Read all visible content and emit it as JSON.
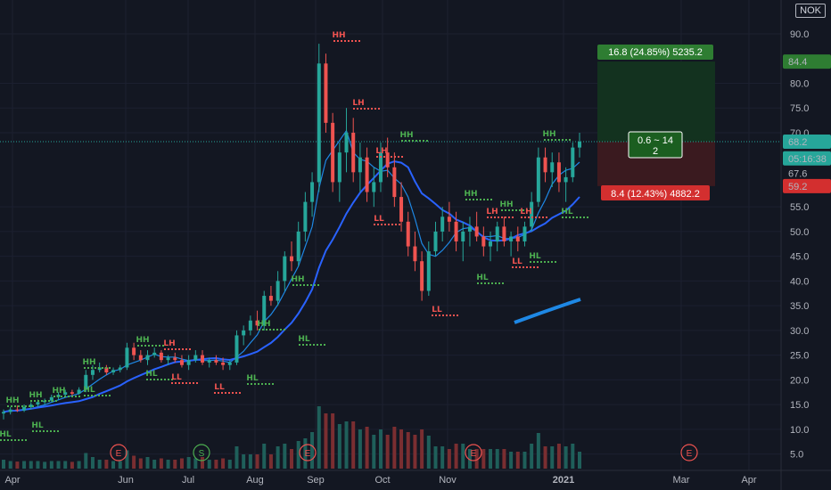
{
  "symbol": "NOK",
  "colors": {
    "background": "#131722",
    "grid": "#1c2030",
    "up": "#26a69a",
    "down": "#ef5350",
    "ma_fast": "#1e88e5",
    "ma_slow": "#2962ff",
    "ma_thick": "#1e88e5",
    "target_zone": "#13321f",
    "stop_zone": "#3a1a1f",
    "swing_green": "#4caf50",
    "swing_red": "#ef5350",
    "current_line": "#26a69a"
  },
  "price_badges": {
    "target": "84.4",
    "current": "68.2",
    "countdown": "05:16:38",
    "last": "67.6",
    "stop": "59.2"
  },
  "position_tool": {
    "target_label": "16.8 (24.85%) 5235.2",
    "ratio_label_line1": "0.6 ~ 14",
    "ratio_label_line2": "2",
    "stop_label": "8.4 (12.43%) 4882.2"
  },
  "events": [
    {
      "label": "E",
      "x_month": "Jun",
      "color": "#ef5350"
    },
    {
      "label": "S",
      "x_month": "Jul",
      "color": "#4caf50"
    },
    {
      "label": "E",
      "x_month": "Aug",
      "color": "#ef5350"
    },
    {
      "label": "E",
      "x_month": "Nov",
      "color": "#ef5350"
    },
    {
      "label": "E",
      "x_month": "Mar",
      "color": "#ef5350"
    }
  ],
  "chart_data": {
    "type": "candlestick",
    "title": "",
    "xlabel": "",
    "ylabel": "",
    "x_ticks": [
      "Apr",
      "Jun",
      "Jul",
      "Aug",
      "Sep",
      "Oct",
      "Nov",
      "2021",
      "Mar",
      "Apr"
    ],
    "y_ticks": [
      "5.0",
      "10.0",
      "15.0",
      "20.0",
      "25.0",
      "30.0",
      "35.0",
      "40.0",
      "45.0",
      "50.0",
      "55.0",
      "70.0",
      "75.0",
      "80.0",
      "90.0"
    ],
    "ylim": [
      3,
      92
    ],
    "grid": true,
    "ohlc": [
      [
        13.2,
        14,
        12,
        13.5
      ],
      [
        13.5,
        14.5,
        13,
        14
      ],
      [
        14,
        14.8,
        13.5,
        13.8
      ],
      [
        13.8,
        15,
        13.5,
        14.5
      ],
      [
        14.5,
        15.5,
        14,
        15
      ],
      [
        15,
        16,
        14.5,
        15.5
      ],
      [
        15.5,
        16.2,
        15,
        15.8
      ],
      [
        15.8,
        17,
        15.5,
        16.5
      ],
      [
        16.5,
        17.5,
        16,
        17
      ],
      [
        17,
        18,
        16.5,
        17.5
      ],
      [
        17.5,
        18,
        16.8,
        17.2
      ],
      [
        17.2,
        18.5,
        17,
        18
      ],
      [
        18,
        22,
        17.5,
        21
      ],
      [
        21,
        23,
        20,
        22
      ],
      [
        22,
        23.5,
        21.5,
        22.5
      ],
      [
        22.5,
        23,
        21,
        21.5
      ],
      [
        21.5,
        22.5,
        21,
        22
      ],
      [
        22,
        23,
        21.5,
        22.5
      ],
      [
        22.5,
        27.5,
        22,
        26.5
      ],
      [
        26.5,
        27.5,
        24,
        25
      ],
      [
        25,
        26,
        23.5,
        24
      ],
      [
        24,
        26,
        23,
        25
      ],
      [
        25,
        26.5,
        24.5,
        25.5
      ],
      [
        25.5,
        26,
        23.5,
        24
      ],
      [
        24,
        25,
        23,
        24.5
      ],
      [
        24.5,
        25.5,
        23.5,
        24
      ],
      [
        24,
        25,
        22.5,
        23
      ],
      [
        23,
        25,
        22,
        24
      ],
      [
        24,
        26,
        23.5,
        25
      ],
      [
        25,
        26,
        23,
        23.5
      ],
      [
        23.5,
        24.5,
        22.5,
        24
      ],
      [
        24,
        25,
        23,
        23.5
      ],
      [
        23.5,
        24.5,
        22,
        23
      ],
      [
        23,
        24,
        22,
        23.5
      ],
      [
        23.5,
        30,
        23,
        29
      ],
      [
        29,
        31,
        27,
        30
      ],
      [
        30,
        33,
        29,
        32
      ],
      [
        32,
        34,
        30,
        31
      ],
      [
        31,
        38,
        30,
        37
      ],
      [
        37,
        39,
        35,
        36
      ],
      [
        36,
        42,
        35,
        40
      ],
      [
        40,
        46,
        38,
        45
      ],
      [
        45,
        48,
        42,
        44
      ],
      [
        44,
        52,
        43,
        50
      ],
      [
        50,
        58,
        48,
        56
      ],
      [
        56,
        62,
        53,
        60
      ],
      [
        60,
        88,
        58,
        84
      ],
      [
        84,
        86,
        70,
        72
      ],
      [
        72,
        74,
        58,
        60
      ],
      [
        60,
        68,
        56,
        66
      ],
      [
        66,
        75,
        62,
        70
      ],
      [
        70,
        73,
        60,
        62
      ],
      [
        62,
        68,
        58,
        65
      ],
      [
        65,
        67,
        56,
        58
      ],
      [
        58,
        63,
        55,
        60
      ],
      [
        60,
        68,
        58,
        66
      ],
      [
        66,
        69,
        61,
        63
      ],
      [
        63,
        66,
        55,
        57
      ],
      [
        57,
        60,
        50,
        52
      ],
      [
        52,
        54,
        45,
        47
      ],
      [
        47,
        50,
        42,
        44
      ],
      [
        44,
        46,
        36,
        38
      ],
      [
        38,
        48,
        37,
        46
      ],
      [
        46,
        52,
        45,
        50
      ],
      [
        50,
        55,
        48,
        53
      ],
      [
        53,
        56,
        50,
        52
      ],
      [
        52,
        54,
        46,
        48
      ],
      [
        48,
        52,
        44,
        50
      ],
      [
        50,
        53,
        47,
        51
      ],
      [
        51,
        54,
        48,
        49
      ],
      [
        49,
        51,
        45,
        47
      ],
      [
        47,
        50,
        44,
        48
      ],
      [
        48,
        52,
        46,
        51
      ],
      [
        51,
        53,
        47,
        48
      ],
      [
        48,
        50,
        45,
        49
      ],
      [
        49,
        51,
        46,
        48
      ],
      [
        48,
        52,
        47,
        51
      ],
      [
        51,
        58,
        50,
        56
      ],
      [
        56,
        67,
        55,
        65
      ],
      [
        65,
        67,
        60,
        62
      ],
      [
        62,
        66,
        59,
        64
      ],
      [
        64,
        66,
        58,
        60
      ],
      [
        60,
        63,
        56,
        61
      ],
      [
        61,
        68,
        60,
        67
      ],
      [
        67,
        70,
        65,
        68.2
      ]
    ],
    "series": [
      {
        "name": "",
        "style": "fast moving average"
      },
      {
        "name": "",
        "style": "slow moving average"
      }
    ],
    "swing_labels": [
      {
        "text": "HH",
        "color": "green"
      },
      {
        "text": "HL",
        "color": "green"
      },
      {
        "text": "LH",
        "color": "red"
      },
      {
        "text": "LL",
        "color": "red"
      }
    ]
  }
}
